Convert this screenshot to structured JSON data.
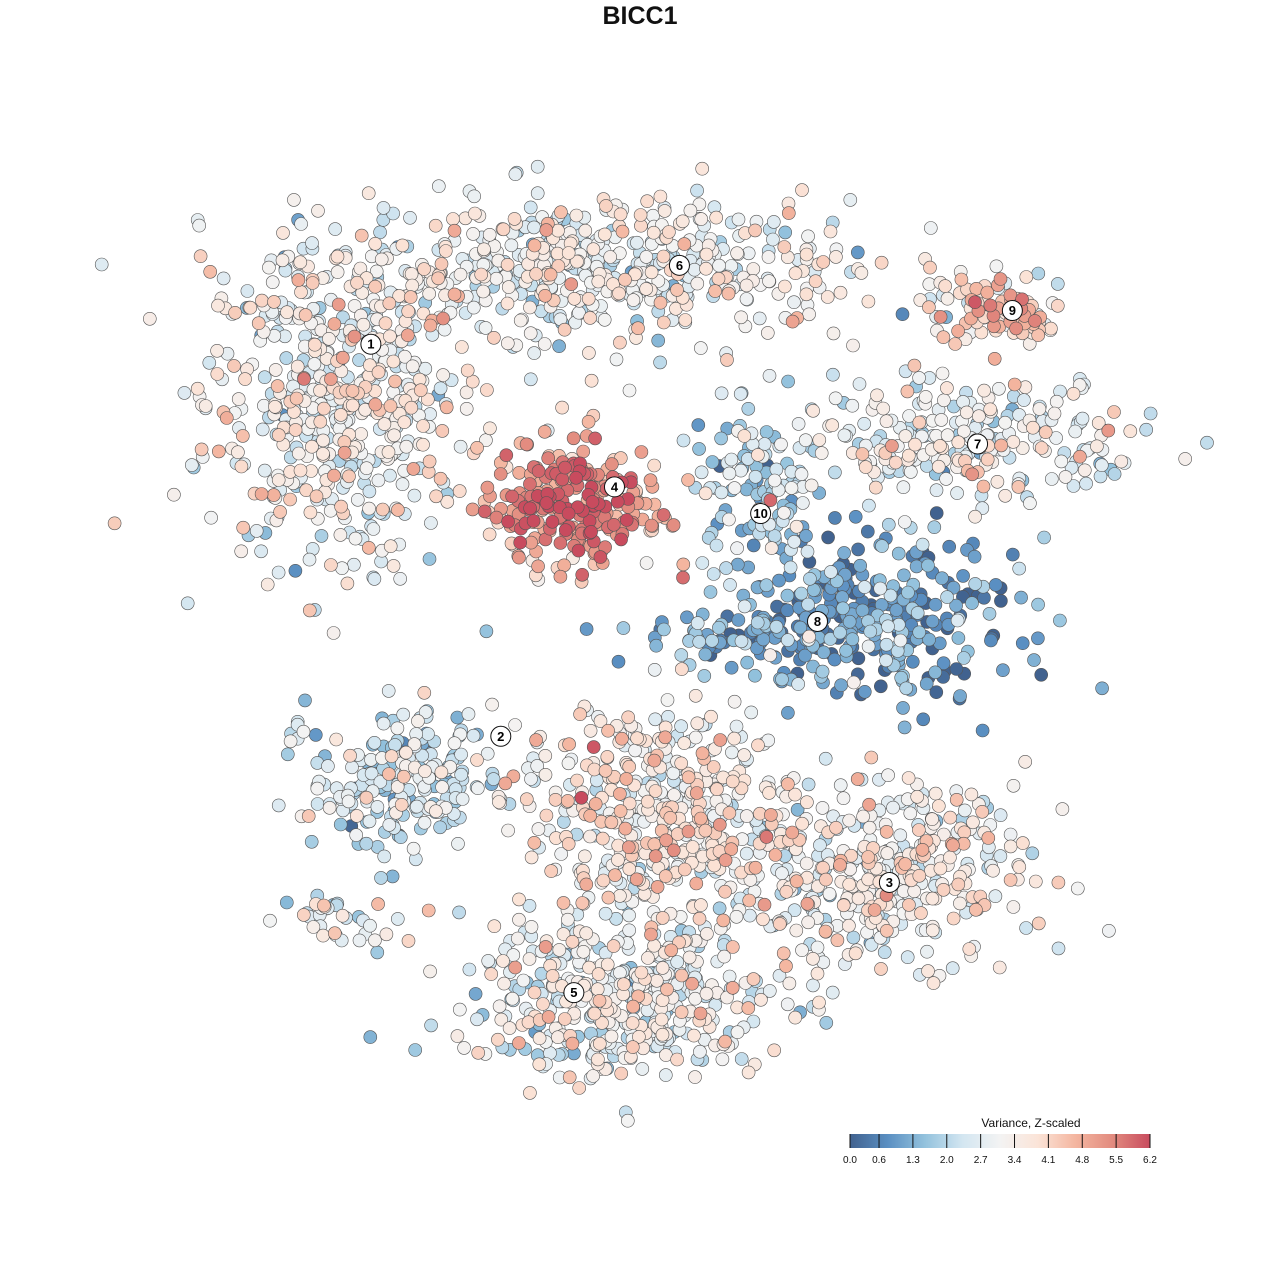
{
  "chart_data": {
    "type": "scatter",
    "title": "BICC1",
    "xlabel": "",
    "ylabel": "",
    "axes_visible": false,
    "grid": false,
    "xlim": [
      -40,
      40
    ],
    "ylim": [
      -40,
      40
    ],
    "legend": {
      "title": "Variance, Z-scaled",
      "placement": "bottom-right",
      "range": [
        0.0,
        6.2
      ],
      "ticks": [
        "0.0",
        "0.6",
        "1.3",
        "2.0",
        "2.7",
        "3.4",
        "4.1",
        "4.8",
        "5.5",
        "6.2"
      ],
      "colors": [
        "#41628f",
        "#5a8fc2",
        "#93c2dd",
        "#d3e6f1",
        "#f3f3f3",
        "#fbe4d8",
        "#f4b6a0",
        "#e28b7f",
        "#c84b5e"
      ]
    },
    "point_outline": "#555555",
    "clusters": [
      {
        "label": "1",
        "label_position": [
          -23.2,
          25.5
        ],
        "components": [
          {
            "center": [
              -26.3,
              20.7
            ],
            "spread": [
              5.6,
              6.9
            ],
            "n": 520,
            "mean_value": 3.1
          }
        ]
      },
      {
        "label": "6",
        "label_position": [
          3.4,
          32.3
        ],
        "components": [
          {
            "center": [
              -4.3,
              31.9
            ],
            "spread": [
              11.2,
              3.0
            ],
            "n": 560,
            "mean_value": 3.0
          }
        ]
      },
      {
        "label": "9",
        "label_position": [
          32.1,
          28.4
        ],
        "components": [
          {
            "center": [
              31.0,
              28.4
            ],
            "spread": [
              3.4,
              1.7
            ],
            "n": 90,
            "mean_value": 3.6
          }
        ]
      },
      {
        "label": "7",
        "label_position": [
          29.1,
          16.9
        ],
        "components": [
          {
            "center": [
              27.6,
              17.2
            ],
            "spread": [
              7.8,
              2.6
            ],
            "n": 260,
            "mean_value": 3.0
          }
        ]
      },
      {
        "label": "4",
        "label_position": [
          -2.2,
          13.2
        ],
        "components": [
          {
            "center": [
              -5.6,
              11.6
            ],
            "spread": [
              3.9,
              3.0
            ],
            "n": 260,
            "mean_value": 4.8
          }
        ]
      },
      {
        "label": "10",
        "label_position": [
          10.4,
          10.9
        ],
        "components": [
          {
            "center": [
              9.9,
              12.9
            ],
            "spread": [
              2.6,
              3.4
            ],
            "n": 110,
            "mean_value": 1.9
          }
        ]
      },
      {
        "label": "8",
        "label_position": [
          15.3,
          1.6
        ],
        "components": [
          {
            "center": [
              20.7,
              1.7
            ],
            "spread": [
              6.0,
              3.4
            ],
            "n": 300,
            "mean_value": 0.9
          },
          {
            "center": [
              9.0,
              0.5
            ],
            "spread": [
              4.5,
              1.2
            ],
            "n": 90,
            "mean_value": 0.8
          }
        ]
      },
      {
        "label": "2",
        "label_position": [
          -12.0,
          -8.3
        ],
        "components": [
          {
            "center": [
              -20.7,
              -12.1
            ],
            "spread": [
              3.9,
              3.0
            ],
            "n": 220,
            "mean_value": 2.3
          },
          {
            "center": [
              -25.9,
              -24.1
            ],
            "spread": [
              2.6,
              1.3
            ],
            "n": 35,
            "mean_value": 3.0
          }
        ]
      },
      {
        "label": "3",
        "label_position": [
          21.5,
          -20.9
        ],
        "components": [
          {
            "center": [
              20.7,
              -19.8
            ],
            "spread": [
              6.5,
              3.9
            ],
            "n": 380,
            "mean_value": 3.2
          },
          {
            "center": [
              1.7,
              -15.5
            ],
            "spread": [
              6.0,
              5.2
            ],
            "n": 480,
            "mean_value": 3.4
          }
        ]
      },
      {
        "label": "5",
        "label_position": [
          -5.7,
          -30.4
        ],
        "components": [
          {
            "center": [
              -1.7,
              -31.0
            ],
            "spread": [
              6.9,
              3.4
            ],
            "n": 420,
            "mean_value": 2.9
          }
        ]
      }
    ]
  }
}
